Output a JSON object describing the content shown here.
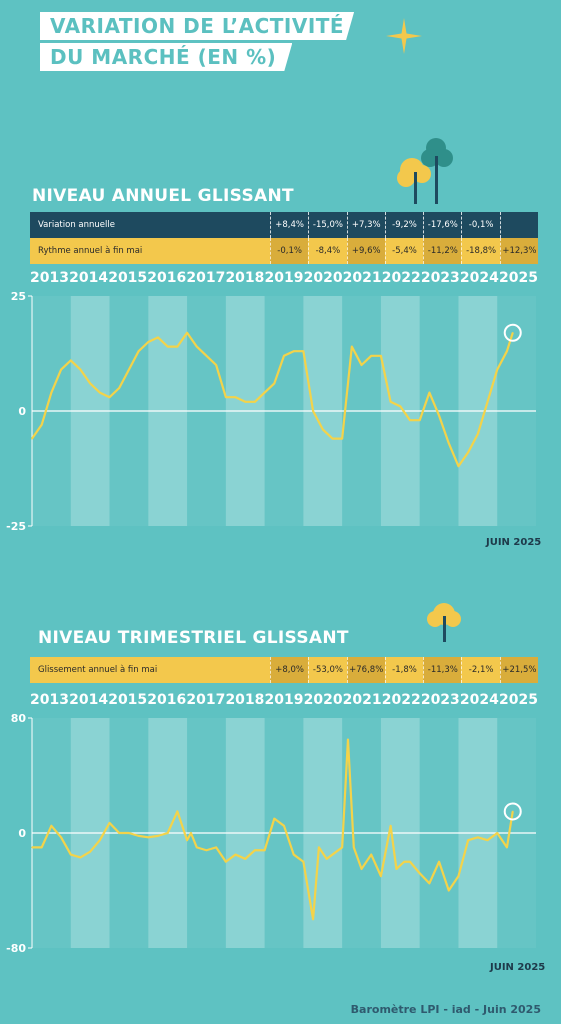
{
  "header": {
    "title_line1": "VARIATION DE L’ACTIVITÉ",
    "title_line2": "DU MARCHÉ (EN %)"
  },
  "annual": {
    "section_title": "NIVEAU ANNUEL GLISSANT",
    "row1_label": "Variation annuelle",
    "row1_values": [
      "+8,4%",
      "-15,0%",
      "+7,3%",
      "-9,2%",
      "-17,6%",
      "-0,1%",
      ""
    ],
    "row2_label": "Rythme annuel à fin mai",
    "row2_values": [
      "-0,1%",
      "-8,4%",
      "+9,6%",
      "-5,4%",
      "-11,2%",
      "-18,8%",
      "+12,3%"
    ],
    "date_note": "JUIN 2025"
  },
  "quarterly": {
    "section_title": "NIVEAU TRIMESTRIEL GLISSANT",
    "row1_label": "Glissement annuel à fin mai",
    "row1_values": [
      "+8,0%",
      "-53,0%",
      "+76,8%",
      "-1,8%",
      "-11,3%",
      "-2,1%",
      "+21,5%"
    ],
    "date_note": "JUIN 2025"
  },
  "footer": {
    "source": "Baromètre LPI - iad - Juin  2025"
  },
  "colors": {
    "background": "#5ec2c2",
    "line": "#f3d34a",
    "dark": "#1e4a5f",
    "yellow": "#f3c84c"
  },
  "chart_data": [
    {
      "type": "line",
      "title": "NIVEAU ANNUEL GLISSANT",
      "categories": [
        "2013",
        "2014",
        "2015",
        "2016",
        "2017",
        "2018",
        "2019",
        "2020",
        "2021",
        "2022",
        "2023",
        "2024",
        "2025"
      ],
      "y_ticks": [
        "25",
        "0",
        "-25"
      ],
      "ylim": [
        -25,
        25
      ],
      "x": [
        2013.0,
        2013.25,
        2013.5,
        2013.75,
        2014.0,
        2014.25,
        2014.5,
        2014.75,
        2015.0,
        2015.25,
        2015.5,
        2015.75,
        2016.0,
        2016.25,
        2016.5,
        2016.75,
        2017.0,
        2017.25,
        2017.5,
        2017.75,
        2018.0,
        2018.25,
        2018.5,
        2018.75,
        2019.0,
        2019.25,
        2019.5,
        2019.75,
        2020.0,
        2020.25,
        2020.5,
        2020.75,
        2021.0,
        2021.25,
        2021.5,
        2021.75,
        2022.0,
        2022.25,
        2022.5,
        2022.75,
        2023.0,
        2023.25,
        2023.5,
        2023.75,
        2024.0,
        2024.25,
        2024.5,
        2024.75,
        2025.0,
        2025.25,
        2025.4
      ],
      "values": [
        -6,
        -3,
        4,
        9,
        11,
        9,
        6,
        4,
        3,
        5,
        9,
        13,
        15,
        16,
        14,
        14,
        17,
        14,
        12,
        10,
        3,
        3,
        2,
        2,
        4,
        6,
        12,
        13,
        13,
        0,
        -4,
        -6,
        -6,
        14,
        10,
        12,
        12,
        2,
        1,
        -2,
        -2,
        4,
        -1,
        -7,
        -12,
        -9,
        -5,
        2,
        9,
        13,
        17
      ],
      "date_note": "JUIN 2025"
    },
    {
      "type": "line",
      "title": "NIVEAU TRIMESTRIEL GLISSANT",
      "categories": [
        "2013",
        "2014",
        "2015",
        "2016",
        "2017",
        "2018",
        "2019",
        "2020",
        "2021",
        "2022",
        "2023",
        "2024",
        "2025"
      ],
      "y_ticks": [
        "80",
        "0",
        "-80"
      ],
      "ylim": [
        -80,
        80
      ],
      "x": [
        2013.0,
        2013.25,
        2013.5,
        2013.75,
        2014.0,
        2014.25,
        2014.5,
        2014.75,
        2015.0,
        2015.25,
        2015.5,
        2015.75,
        2016.0,
        2016.25,
        2016.5,
        2016.75,
        2017.0,
        2017.1,
        2017.25,
        2017.5,
        2017.75,
        2018.0,
        2018.25,
        2018.5,
        2018.75,
        2019.0,
        2019.25,
        2019.5,
        2019.75,
        2020.0,
        2020.25,
        2020.4,
        2020.6,
        2020.75,
        2021.0,
        2021.15,
        2021.3,
        2021.5,
        2021.75,
        2022.0,
        2022.25,
        2022.4,
        2022.6,
        2022.75,
        2023.0,
        2023.25,
        2023.5,
        2023.75,
        2024.0,
        2024.25,
        2024.5,
        2024.75,
        2025.0,
        2025.25,
        2025.4
      ],
      "values": [
        -10,
        -10,
        5,
        -3,
        -15,
        -17,
        -13,
        -5,
        7,
        0,
        0,
        -2,
        -3,
        -2,
        0,
        15,
        -5,
        0,
        -10,
        -12,
        -10,
        -20,
        -15,
        -18,
        -12,
        -12,
        10,
        5,
        -15,
        -20,
        -60,
        -10,
        -18,
        -15,
        -10,
        65,
        -10,
        -25,
        -15,
        -30,
        5,
        -25,
        -20,
        -20,
        -28,
        -35,
        -20,
        -40,
        -30,
        -5,
        -3,
        -5,
        0,
        -10,
        15
      ],
      "date_note": "JUIN 2025"
    }
  ]
}
